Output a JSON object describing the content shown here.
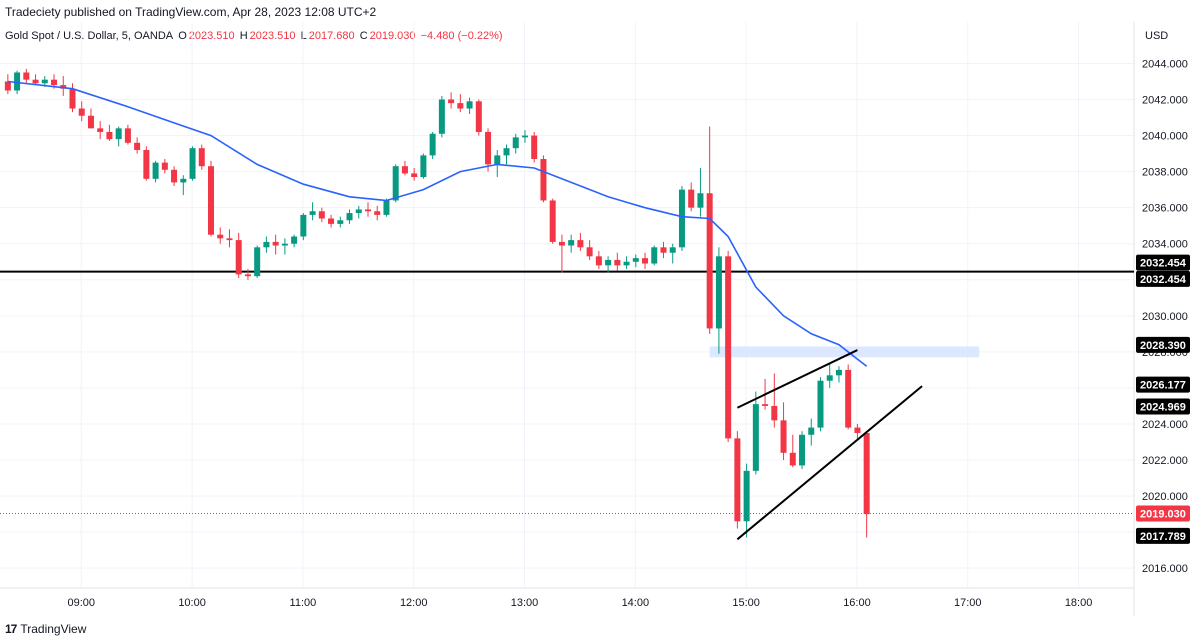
{
  "header": {
    "published_text": "Tradeciety published on TradingView.com, Apr 28, 2023 12:08 UTC+2",
    "symbol": "Gold Spot / U.S. Dollar, 5, OANDA",
    "o_label": "O",
    "o_value": "2023.510",
    "h_label": "H",
    "h_value": "2023.510",
    "l_label": "L",
    "l_value": "2017.680",
    "c_label": "C",
    "c_value": "2019.030",
    "change": "−4.480 (−0.22%)",
    "currency": "USD"
  },
  "footer": {
    "logo_text": "TradingView",
    "logo_mark": "17"
  },
  "colors": {
    "up": "#089981",
    "down": "#f23645",
    "ma": "#2962ff",
    "zone": "#d6e4ff",
    "line": "#000000"
  },
  "chart_data": {
    "type": "candlestick",
    "y_ticks": [
      "2016.000",
      "2018.000",
      "2020.000",
      "2022.000",
      "2024.000",
      "2026.000",
      "2028.000",
      "2030.000",
      "2032.000",
      "2034.000",
      "2036.000",
      "2038.000",
      "2040.000",
      "2042.000",
      "2044.000"
    ],
    "y_range": [
      2014.9,
      2046.3
    ],
    "x_ticks": [
      "09:00",
      "10:00",
      "11:00",
      "12:00",
      "13:00",
      "14:00",
      "15:00",
      "16:00",
      "17:00",
      "18:00"
    ],
    "x_range": [
      "08:16",
      "18:30"
    ],
    "candles": [
      {
        "t": "08:17",
        "o": 2043.0,
        "h": 2043.4,
        "l": 2042.3,
        "c": 2042.5
      },
      {
        "t": "08:22",
        "o": 2042.5,
        "h": 2043.6,
        "l": 2042.3,
        "c": 2043.5
      },
      {
        "t": "08:27",
        "o": 2043.5,
        "h": 2043.7,
        "l": 2042.9,
        "c": 2043.1
      },
      {
        "t": "08:32",
        "o": 2043.1,
        "h": 2043.4,
        "l": 2042.8,
        "c": 2042.9
      },
      {
        "t": "08:37",
        "o": 2042.9,
        "h": 2043.3,
        "l": 2042.7,
        "c": 2043.1
      },
      {
        "t": "08:42",
        "o": 2043.1,
        "h": 2043.4,
        "l": 2042.6,
        "c": 2042.8
      },
      {
        "t": "08:47",
        "o": 2042.8,
        "h": 2043.3,
        "l": 2042.2,
        "c": 2042.6
      },
      {
        "t": "08:52",
        "o": 2042.6,
        "h": 2042.9,
        "l": 2041.3,
        "c": 2041.5
      },
      {
        "t": "08:57",
        "o": 2041.5,
        "h": 2041.9,
        "l": 2040.8,
        "c": 2041.1
      },
      {
        "t": "09:02",
        "o": 2041.1,
        "h": 2041.5,
        "l": 2040.4,
        "c": 2040.4
      },
      {
        "t": "09:07",
        "o": 2040.4,
        "h": 2040.8,
        "l": 2039.8,
        "c": 2040.2
      },
      {
        "t": "09:12",
        "o": 2040.2,
        "h": 2040.6,
        "l": 2039.7,
        "c": 2039.8
      },
      {
        "t": "09:17",
        "o": 2039.8,
        "h": 2040.5,
        "l": 2039.4,
        "c": 2040.4
      },
      {
        "t": "09:22",
        "o": 2040.4,
        "h": 2040.6,
        "l": 2039.5,
        "c": 2039.6
      },
      {
        "t": "09:27",
        "o": 2039.6,
        "h": 2039.9,
        "l": 2039.0,
        "c": 2039.2
      },
      {
        "t": "09:32",
        "o": 2039.2,
        "h": 2039.4,
        "l": 2037.5,
        "c": 2037.6
      },
      {
        "t": "09:37",
        "o": 2037.6,
        "h": 2038.6,
        "l": 2037.4,
        "c": 2038.5
      },
      {
        "t": "09:42",
        "o": 2038.5,
        "h": 2038.7,
        "l": 2037.9,
        "c": 2038.1
      },
      {
        "t": "09:47",
        "o": 2038.1,
        "h": 2038.3,
        "l": 2037.2,
        "c": 2037.4
      },
      {
        "t": "09:52",
        "o": 2037.4,
        "h": 2037.8,
        "l": 2036.7,
        "c": 2037.6
      },
      {
        "t": "09:57",
        "o": 2037.6,
        "h": 2039.4,
        "l": 2037.5,
        "c": 2039.3
      },
      {
        "t": "10:02",
        "o": 2039.3,
        "h": 2039.5,
        "l": 2038.1,
        "c": 2038.3
      },
      {
        "t": "10:07",
        "o": 2038.3,
        "h": 2038.6,
        "l": 2034.4,
        "c": 2034.5
      },
      {
        "t": "10:12",
        "o": 2034.5,
        "h": 2034.9,
        "l": 2034.0,
        "c": 2034.3
      },
      {
        "t": "10:17",
        "o": 2034.3,
        "h": 2034.8,
        "l": 2033.8,
        "c": 2034.2
      },
      {
        "t": "10:22",
        "o": 2034.2,
        "h": 2034.6,
        "l": 2032.1,
        "c": 2032.3
      },
      {
        "t": "10:27",
        "o": 2032.3,
        "h": 2032.6,
        "l": 2032.0,
        "c": 2032.2
      },
      {
        "t": "10:32",
        "o": 2032.2,
        "h": 2033.9,
        "l": 2032.1,
        "c": 2033.8
      },
      {
        "t": "10:37",
        "o": 2033.8,
        "h": 2034.4,
        "l": 2033.5,
        "c": 2034.1
      },
      {
        "t": "10:42",
        "o": 2034.1,
        "h": 2034.5,
        "l": 2033.4,
        "c": 2033.9
      },
      {
        "t": "10:47",
        "o": 2033.9,
        "h": 2034.3,
        "l": 2033.4,
        "c": 2034.0
      },
      {
        "t": "10:52",
        "o": 2034.0,
        "h": 2034.5,
        "l": 2033.8,
        "c": 2034.4
      },
      {
        "t": "10:57",
        "o": 2034.4,
        "h": 2035.7,
        "l": 2034.2,
        "c": 2035.6
      },
      {
        "t": "11:02",
        "o": 2035.6,
        "h": 2036.3,
        "l": 2035.3,
        "c": 2035.8
      },
      {
        "t": "11:07",
        "o": 2035.8,
        "h": 2036.0,
        "l": 2035.2,
        "c": 2035.4
      },
      {
        "t": "11:12",
        "o": 2035.4,
        "h": 2035.6,
        "l": 2034.9,
        "c": 2035.1
      },
      {
        "t": "11:17",
        "o": 2035.1,
        "h": 2035.5,
        "l": 2034.9,
        "c": 2035.3
      },
      {
        "t": "11:22",
        "o": 2035.3,
        "h": 2035.9,
        "l": 2035.1,
        "c": 2035.7
      },
      {
        "t": "11:27",
        "o": 2035.7,
        "h": 2036.1,
        "l": 2035.4,
        "c": 2035.9
      },
      {
        "t": "11:32",
        "o": 2035.9,
        "h": 2036.3,
        "l": 2035.5,
        "c": 2035.8
      },
      {
        "t": "11:37",
        "o": 2035.8,
        "h": 2036.1,
        "l": 2035.3,
        "c": 2035.6
      },
      {
        "t": "11:42",
        "o": 2035.6,
        "h": 2036.5,
        "l": 2035.5,
        "c": 2036.4
      },
      {
        "t": "11:47",
        "o": 2036.4,
        "h": 2038.4,
        "l": 2036.3,
        "c": 2038.3
      },
      {
        "t": "11:52",
        "o": 2038.3,
        "h": 2038.6,
        "l": 2037.8,
        "c": 2037.9
      },
      {
        "t": "11:57",
        "o": 2037.9,
        "h": 2038.2,
        "l": 2037.5,
        "c": 2037.7
      },
      {
        "t": "12:02",
        "o": 2037.7,
        "h": 2039.0,
        "l": 2037.6,
        "c": 2038.9
      },
      {
        "t": "12:07",
        "o": 2038.9,
        "h": 2040.2,
        "l": 2038.7,
        "c": 2040.1
      },
      {
        "t": "12:12",
        "o": 2040.1,
        "h": 2042.2,
        "l": 2039.9,
        "c": 2042.0
      },
      {
        "t": "12:17",
        "o": 2042.0,
        "h": 2042.4,
        "l": 2041.5,
        "c": 2041.8
      },
      {
        "t": "12:22",
        "o": 2041.8,
        "h": 2042.3,
        "l": 2041.3,
        "c": 2041.5
      },
      {
        "t": "12:27",
        "o": 2041.5,
        "h": 2042.1,
        "l": 2041.2,
        "c": 2041.9
      },
      {
        "t": "12:32",
        "o": 2041.9,
        "h": 2042.0,
        "l": 2040.0,
        "c": 2040.2
      },
      {
        "t": "12:37",
        "o": 2040.2,
        "h": 2040.4,
        "l": 2038.0,
        "c": 2038.4
      },
      {
        "t": "12:42",
        "o": 2038.4,
        "h": 2039.2,
        "l": 2037.7,
        "c": 2038.9
      },
      {
        "t": "12:47",
        "o": 2038.9,
        "h": 2039.5,
        "l": 2038.4,
        "c": 2039.3
      },
      {
        "t": "12:52",
        "o": 2039.3,
        "h": 2040.1,
        "l": 2039.0,
        "c": 2039.9
      },
      {
        "t": "12:57",
        "o": 2039.9,
        "h": 2040.3,
        "l": 2039.6,
        "c": 2040.0
      },
      {
        "t": "13:02",
        "o": 2040.0,
        "h": 2040.2,
        "l": 2038.5,
        "c": 2038.7
      },
      {
        "t": "13:07",
        "o": 2038.7,
        "h": 2038.9,
        "l": 2036.3,
        "c": 2036.4
      },
      {
        "t": "13:12",
        "o": 2036.4,
        "h": 2036.5,
        "l": 2034.0,
        "c": 2034.1
      },
      {
        "t": "13:17",
        "o": 2034.1,
        "h": 2034.5,
        "l": 2032.4,
        "c": 2033.9
      },
      {
        "t": "13:22",
        "o": 2033.9,
        "h": 2034.5,
        "l": 2033.5,
        "c": 2034.2
      },
      {
        "t": "13:27",
        "o": 2034.2,
        "h": 2034.6,
        "l": 2033.6,
        "c": 2033.8
      },
      {
        "t": "13:32",
        "o": 2033.8,
        "h": 2034.2,
        "l": 2033.1,
        "c": 2033.3
      },
      {
        "t": "13:37",
        "o": 2033.3,
        "h": 2033.6,
        "l": 2032.6,
        "c": 2032.8
      },
      {
        "t": "13:42",
        "o": 2032.8,
        "h": 2033.3,
        "l": 2032.4,
        "c": 2033.1
      },
      {
        "t": "13:47",
        "o": 2033.1,
        "h": 2033.5,
        "l": 2032.5,
        "c": 2032.8
      },
      {
        "t": "13:52",
        "o": 2032.8,
        "h": 2033.3,
        "l": 2032.6,
        "c": 2033.0
      },
      {
        "t": "13:57",
        "o": 2033.0,
        "h": 2033.4,
        "l": 2032.7,
        "c": 2033.2
      },
      {
        "t": "14:02",
        "o": 2033.2,
        "h": 2033.5,
        "l": 2032.6,
        "c": 2032.9
      },
      {
        "t": "14:07",
        "o": 2032.9,
        "h": 2033.9,
        "l": 2032.8,
        "c": 2033.8
      },
      {
        "t": "14:12",
        "o": 2033.8,
        "h": 2034.1,
        "l": 2033.2,
        "c": 2033.5
      },
      {
        "t": "14:17",
        "o": 2033.5,
        "h": 2034.0,
        "l": 2032.9,
        "c": 2033.8
      },
      {
        "t": "14:22",
        "o": 2033.8,
        "h": 2037.2,
        "l": 2033.6,
        "c": 2037.0
      },
      {
        "t": "14:27",
        "o": 2037.0,
        "h": 2037.4,
        "l": 2035.8,
        "c": 2036.0
      },
      {
        "t": "14:32",
        "o": 2036.0,
        "h": 2038.2,
        "l": 2035.5,
        "c": 2036.8
      },
      {
        "t": "14:37",
        "o": 2036.8,
        "h": 2040.5,
        "l": 2029.0,
        "c": 2029.3
      },
      {
        "t": "14:42",
        "o": 2029.3,
        "h": 2033.8,
        "l": 2027.9,
        "c": 2033.3
      },
      {
        "t": "14:47",
        "o": 2033.3,
        "h": 2033.6,
        "l": 2023.0,
        "c": 2023.2
      },
      {
        "t": "14:52",
        "o": 2023.2,
        "h": 2023.6,
        "l": 2018.2,
        "c": 2018.6
      },
      {
        "t": "14:57",
        "o": 2018.6,
        "h": 2021.8,
        "l": 2017.7,
        "c": 2021.4
      },
      {
        "t": "15:02",
        "o": 2021.4,
        "h": 2025.8,
        "l": 2021.2,
        "c": 2025.1
      },
      {
        "t": "15:07",
        "o": 2025.1,
        "h": 2026.5,
        "l": 2024.8,
        "c": 2025.0
      },
      {
        "t": "15:12",
        "o": 2025.0,
        "h": 2026.8,
        "l": 2023.8,
        "c": 2024.2
      },
      {
        "t": "15:17",
        "o": 2024.2,
        "h": 2025.2,
        "l": 2022.0,
        "c": 2022.4
      },
      {
        "t": "15:22",
        "o": 2022.4,
        "h": 2023.4,
        "l": 2021.6,
        "c": 2021.7
      },
      {
        "t": "15:27",
        "o": 2021.7,
        "h": 2023.6,
        "l": 2021.5,
        "c": 2023.4
      },
      {
        "t": "15:32",
        "o": 2023.4,
        "h": 2024.3,
        "l": 2022.8,
        "c": 2023.8
      },
      {
        "t": "15:37",
        "o": 2023.8,
        "h": 2026.6,
        "l": 2023.6,
        "c": 2026.4
      },
      {
        "t": "15:42",
        "o": 2026.4,
        "h": 2027.4,
        "l": 2026.0,
        "c": 2026.7
      },
      {
        "t": "15:47",
        "o": 2026.7,
        "h": 2027.2,
        "l": 2026.3,
        "c": 2027.0
      },
      {
        "t": "15:52",
        "o": 2027.0,
        "h": 2027.3,
        "l": 2023.7,
        "c": 2023.8
      },
      {
        "t": "15:57",
        "o": 2023.8,
        "h": 2024.0,
        "l": 2023.2,
        "c": 2023.5
      },
      {
        "t": "16:02",
        "o": 2023.5,
        "h": 2023.5,
        "l": 2017.7,
        "c": 2019.0
      }
    ],
    "moving_average": {
      "color": "#2962ff",
      "points": [
        {
          "t": "08:17",
          "v": 2043.0
        },
        {
          "t": "08:52",
          "v": 2042.6
        },
        {
          "t": "09:22",
          "v": 2041.6
        },
        {
          "t": "09:47",
          "v": 2040.7
        },
        {
          "t": "10:07",
          "v": 2040.0
        },
        {
          "t": "10:32",
          "v": 2038.4
        },
        {
          "t": "10:57",
          "v": 2037.3
        },
        {
          "t": "11:22",
          "v": 2036.6
        },
        {
          "t": "11:42",
          "v": 2036.4
        },
        {
          "t": "12:02",
          "v": 2037.0
        },
        {
          "t": "12:22",
          "v": 2038.0
        },
        {
          "t": "12:42",
          "v": 2038.4
        },
        {
          "t": "13:02",
          "v": 2038.2
        },
        {
          "t": "13:22",
          "v": 2037.4
        },
        {
          "t": "13:42",
          "v": 2036.6
        },
        {
          "t": "14:02",
          "v": 2036.0
        },
        {
          "t": "14:22",
          "v": 2035.5
        },
        {
          "t": "14:37",
          "v": 2035.4
        },
        {
          "t": "14:47",
          "v": 2034.4
        },
        {
          "t": "15:02",
          "v": 2031.6
        },
        {
          "t": "15:17",
          "v": 2030.0
        },
        {
          "t": "15:32",
          "v": 2029.0
        },
        {
          "t": "15:47",
          "v": 2028.4
        },
        {
          "t": "15:57",
          "v": 2027.6
        },
        {
          "t": "16:02",
          "v": 2027.2
        }
      ]
    },
    "horizontal_line": {
      "price": 2032.454
    },
    "zone": {
      "t_start": "14:37",
      "t_end": "17:03",
      "low": 2027.7,
      "high": 2028.3
    },
    "trend_lines": [
      {
        "t1": "14:52",
        "p1": 2024.9,
        "t2": "15:57",
        "p2": 2028.1
      },
      {
        "t1": "14:52",
        "p1": 2017.6,
        "t2": "16:32",
        "p2": 2026.1
      }
    ],
    "last_price_line": {
      "price": 2019.03
    },
    "price_tags": [
      {
        "label": "2032.454",
        "price": 2032.95,
        "style": "dark"
      },
      {
        "label": "2032.454",
        "price": 2032.05,
        "style": "dark"
      },
      {
        "label": "2028.390",
        "price": 2028.39,
        "style": "dark"
      },
      {
        "label": "2026.177",
        "price": 2026.18,
        "style": "dark"
      },
      {
        "label": "2024.969",
        "price": 2024.97,
        "style": "dark"
      },
      {
        "label": "2019.030",
        "price": 2019.03,
        "style": "red"
      },
      {
        "label": "2017.789",
        "price": 2017.79,
        "style": "dark"
      }
    ]
  }
}
